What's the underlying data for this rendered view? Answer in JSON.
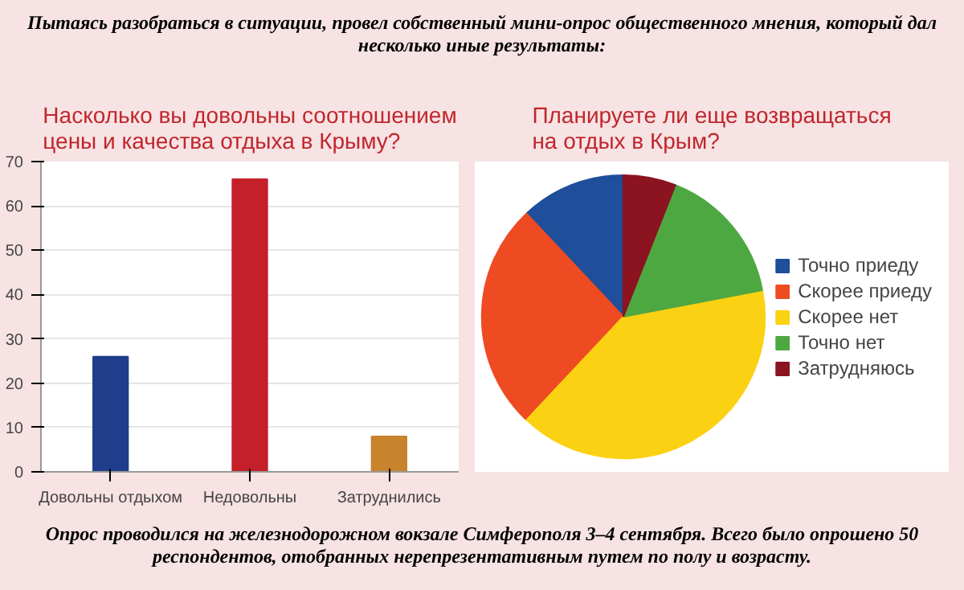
{
  "chart_data": [
    {
      "type": "bar",
      "title": "Насколько вы довольны соотношением\nцены и качества отдыха в Крыму?",
      "categories": [
        "Довольны отдыхом",
        "Недовольны",
        "Затруднились"
      ],
      "values": [
        26,
        66,
        8
      ],
      "colors": [
        "#1f3d8a",
        "#c4202a",
        "#c8832d"
      ],
      "ylim": [
        0,
        70
      ],
      "yticks": [
        0,
        10,
        20,
        30,
        40,
        50,
        60,
        70
      ],
      "grid": "y",
      "annotations": [
        "Пытаясь разобраться в ситуации, провел собственный мини-опрос общественного мнения, который дал несколько иные результаты:"
      ]
    },
    {
      "type": "pie",
      "title": "Планируете ли еще возвращаться\nна отдых в Крым?",
      "categories": [
        "Точно приеду",
        "Скорее приеду",
        "Скорее нет",
        "Точно нет",
        "Затрудняюсь"
      ],
      "values": [
        12,
        26,
        40,
        16,
        6
      ],
      "colors": [
        "#1f4e9a",
        "#ee4b23",
        "#fbd113",
        "#4ea842",
        "#8b1420"
      ],
      "legend": "right",
      "annotations": [
        "Опрос проводился на железнодорожном вокзале Симферополя 3–4 сентября. Всего было опрошено 50 респондентов, отобранных нерепрезентативным путем по полу и возрасту."
      ]
    }
  ]
}
